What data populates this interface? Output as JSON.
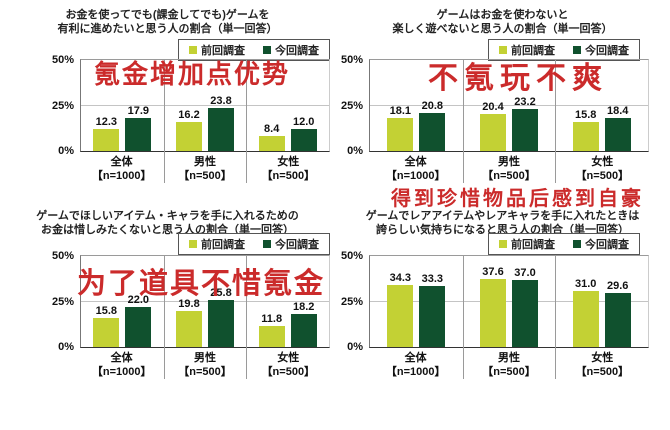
{
  "page": {
    "background": "#ffffff",
    "accent_red": "#cb2b2b",
    "bar_color_previous": "#c3d134",
    "bar_color_current": "#10512e"
  },
  "chart_data": [
    {
      "type": "bar",
      "title_lines": [
        "お金を使ってでも(課金してでも)ゲームを",
        "有利に進めたいと思う人の割合（単一回答）"
      ],
      "ylim": [
        0,
        50
      ],
      "yticks": [
        {
          "label": "50%",
          "value": 50
        },
        {
          "label": "25%",
          "value": 25
        },
        {
          "label": "0%",
          "value": 0
        }
      ],
      "grid": "line at 25% and 50%",
      "legend_position": "top-right",
      "categories": [
        "全体",
        "男性",
        "女性"
      ],
      "category_notes": [
        "【n=1000】",
        "【n=500】",
        "【n=500】"
      ],
      "series": [
        {
          "name": "前回調査",
          "color": "#c3d134",
          "values": [
            12.3,
            16.2,
            8.4
          ]
        },
        {
          "name": "今回調査",
          "color": "#10512e",
          "values": [
            17.9,
            23.8,
            12.0
          ]
        }
      ]
    },
    {
      "type": "bar",
      "title_lines": [
        "ゲームはお金を使わないと",
        "楽しく遊べないと思う人の割合（単一回答）"
      ],
      "ylim": [
        0,
        50
      ],
      "yticks": [
        {
          "label": "50%",
          "value": 50
        },
        {
          "label": "25%",
          "value": 25
        },
        {
          "label": "0%",
          "value": 0
        }
      ],
      "grid": "line at 25% and 50%",
      "legend_position": "top-right",
      "categories": [
        "全体",
        "男性",
        "女性"
      ],
      "category_notes": [
        "【n=1000】",
        "【n=500】",
        "【n=500】"
      ],
      "series": [
        {
          "name": "前回調査",
          "color": "#c3d134",
          "values": [
            18.1,
            20.4,
            15.8
          ]
        },
        {
          "name": "今回調査",
          "color": "#10512e",
          "values": [
            20.8,
            23.2,
            18.4
          ]
        }
      ]
    },
    {
      "type": "bar",
      "title_lines": [
        "ゲームでほしいアイテム・キャラを手に入れるための",
        "お金は惜しみたくないと思う人の割合（単一回答）"
      ],
      "ylim": [
        0,
        50
      ],
      "yticks": [
        {
          "label": "50%",
          "value": 50
        },
        {
          "label": "25%",
          "value": 25
        },
        {
          "label": "0%",
          "value": 0
        }
      ],
      "grid": "line at 25% and 50%",
      "legend_position": "top-right",
      "categories": [
        "全体",
        "男性",
        "女性"
      ],
      "category_notes": [
        "【n=1000】",
        "【n=500】",
        "【n=500】"
      ],
      "series": [
        {
          "name": "前回調査",
          "color": "#c3d134",
          "values": [
            15.8,
            19.8,
            11.8
          ]
        },
        {
          "name": "今回調査",
          "color": "#10512e",
          "values": [
            22.0,
            25.8,
            18.2
          ]
        }
      ]
    },
    {
      "type": "bar",
      "title_lines": [
        "ゲームでレアアイテムやレアキャラを手に入れたときは",
        "誇らしい気持ちになると思う人の割合（単一回答）"
      ],
      "ylim": [
        0,
        50
      ],
      "yticks": [
        {
          "label": "50%",
          "value": 50
        },
        {
          "label": "25%",
          "value": 25
        },
        {
          "label": "0%",
          "value": 0
        }
      ],
      "grid": "line at 25% and 50%",
      "legend_position": "top-right",
      "categories": [
        "全体",
        "男性",
        "女性"
      ],
      "category_notes": [
        "【n=1000】",
        "【n=500】",
        "【n=500】"
      ],
      "series": [
        {
          "name": "前回調査",
          "color": "#c3d134",
          "values": [
            34.3,
            37.6,
            31.0
          ]
        },
        {
          "name": "今回調査",
          "color": "#10512e",
          "values": [
            33.3,
            37.0,
            29.6
          ]
        }
      ]
    }
  ],
  "annotations": [
    {
      "text": "氪金增加点优势",
      "color": "#cb2b2b"
    },
    {
      "text": "不氪玩不爽",
      "color": "#cb2b2b"
    },
    {
      "text": "为了道具不惜氪金",
      "color": "#cb2b2b"
    },
    {
      "text": "得到珍惜物品后感到自豪",
      "color": "#cb2b2b"
    }
  ]
}
